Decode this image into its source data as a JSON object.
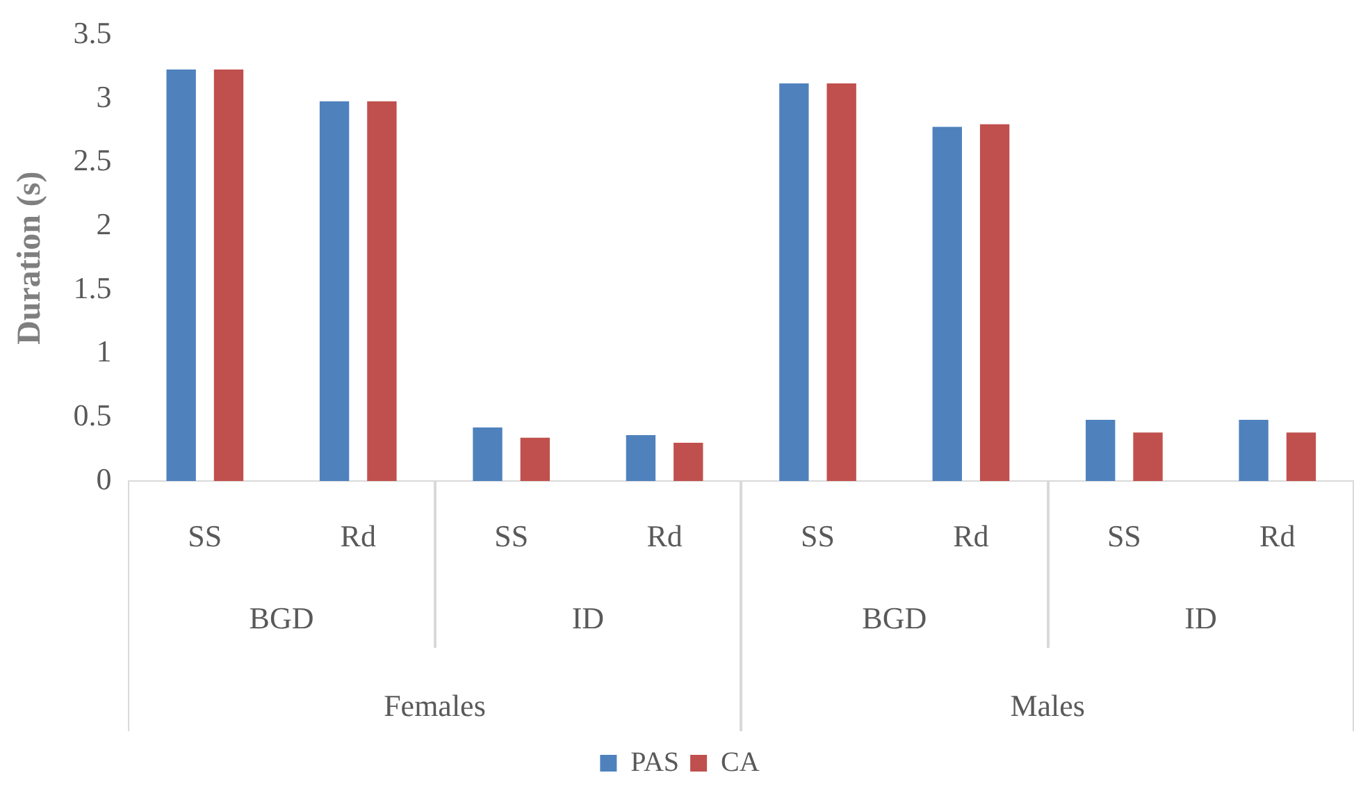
{
  "chart_data": {
    "type": "bar",
    "ylabel": "Duration (s)",
    "categories": [
      "SS",
      "Rd",
      "SS",
      "Rd",
      "SS",
      "Rd",
      "SS",
      "Rd"
    ],
    "annotations": [
      "BGD",
      "ID",
      "BGD",
      "ID",
      "Females",
      "Males"
    ],
    "series": [
      {
        "name": "PAS",
        "color": "#4f81bd",
        "values": [
          3.23,
          2.98,
          0.42,
          0.36,
          3.12,
          2.78,
          0.48,
          0.48
        ]
      },
      {
        "name": "CA",
        "color": "#c0504d",
        "values": [
          3.23,
          2.98,
          0.34,
          0.3,
          3.12,
          2.8,
          0.38,
          0.38
        ]
      }
    ],
    "ylim": [
      0,
      3.5
    ],
    "yticks": [
      0,
      0.5,
      1,
      1.5,
      2,
      2.5,
      3,
      3.5
    ],
    "grid": false,
    "legend": "bottom"
  }
}
